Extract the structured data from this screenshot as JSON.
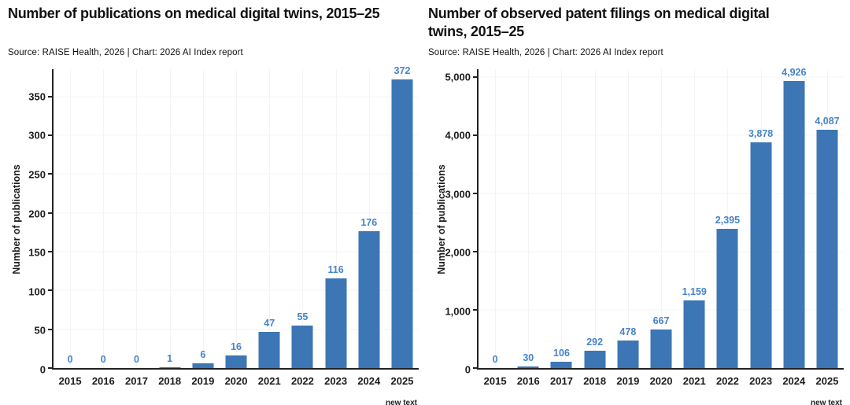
{
  "colors": {
    "bar": "#3d76b4",
    "value_label": "#4684c7",
    "axis": "#222222",
    "grid": "#f4f4f4",
    "text": "#111111"
  },
  "chart_data": [
    {
      "type": "bar",
      "title": "Number of publications on medical digital twins, 2015–25",
      "source": "Source: RAISE Health, 2026 | Chart: 2026 AI Index report",
      "ylabel": "Number of publications",
      "xlabel": "",
      "categories": [
        "2015",
        "2016",
        "2017",
        "2018",
        "2019",
        "2020",
        "2021",
        "2022",
        "2023",
        "2024",
        "2025"
      ],
      "values": [
        0,
        0,
        0,
        1,
        6,
        16,
        47,
        55,
        116,
        176,
        372
      ],
      "value_labels": [
        "0",
        "0",
        "0",
        "1",
        "6",
        "16",
        "47",
        "55",
        "116",
        "176",
        "372"
      ],
      "ylim": [
        0,
        385
      ],
      "yticks": [
        0,
        50,
        100,
        150,
        200,
        250,
        300,
        350
      ],
      "ytick_labels": [
        "0",
        "50",
        "100",
        "150",
        "200",
        "250",
        "300",
        "350"
      ],
      "grid": true,
      "legend": "none",
      "clipped_caption": "new text"
    },
    {
      "type": "bar",
      "title": "Number of observed patent filings on medical digital twins, 2015–25",
      "source": "Source: RAISE Health, 2026 | Chart: 2026 AI Index report",
      "ylabel": "Number of publications",
      "xlabel": "",
      "categories": [
        "2015",
        "2016",
        "2017",
        "2018",
        "2019",
        "2020",
        "2021",
        "2022",
        "2023",
        "2024",
        "2025"
      ],
      "values": [
        0,
        30,
        106,
        292,
        478,
        667,
        1159,
        2395,
        3878,
        4926,
        4087
      ],
      "value_labels": [
        "0",
        "30",
        "106",
        "292",
        "478",
        "667",
        "1,159",
        "2,395",
        "3,878",
        "4,926",
        "4,087"
      ],
      "ylim": [
        0,
        5130
      ],
      "yticks": [
        0,
        1000,
        2000,
        3000,
        4000,
        5000
      ],
      "ytick_labels": [
        "0",
        "1,000",
        "2,000",
        "3,000",
        "4,000",
        "5,000"
      ],
      "grid": true,
      "legend": "none",
      "clipped_caption": "new text"
    }
  ]
}
